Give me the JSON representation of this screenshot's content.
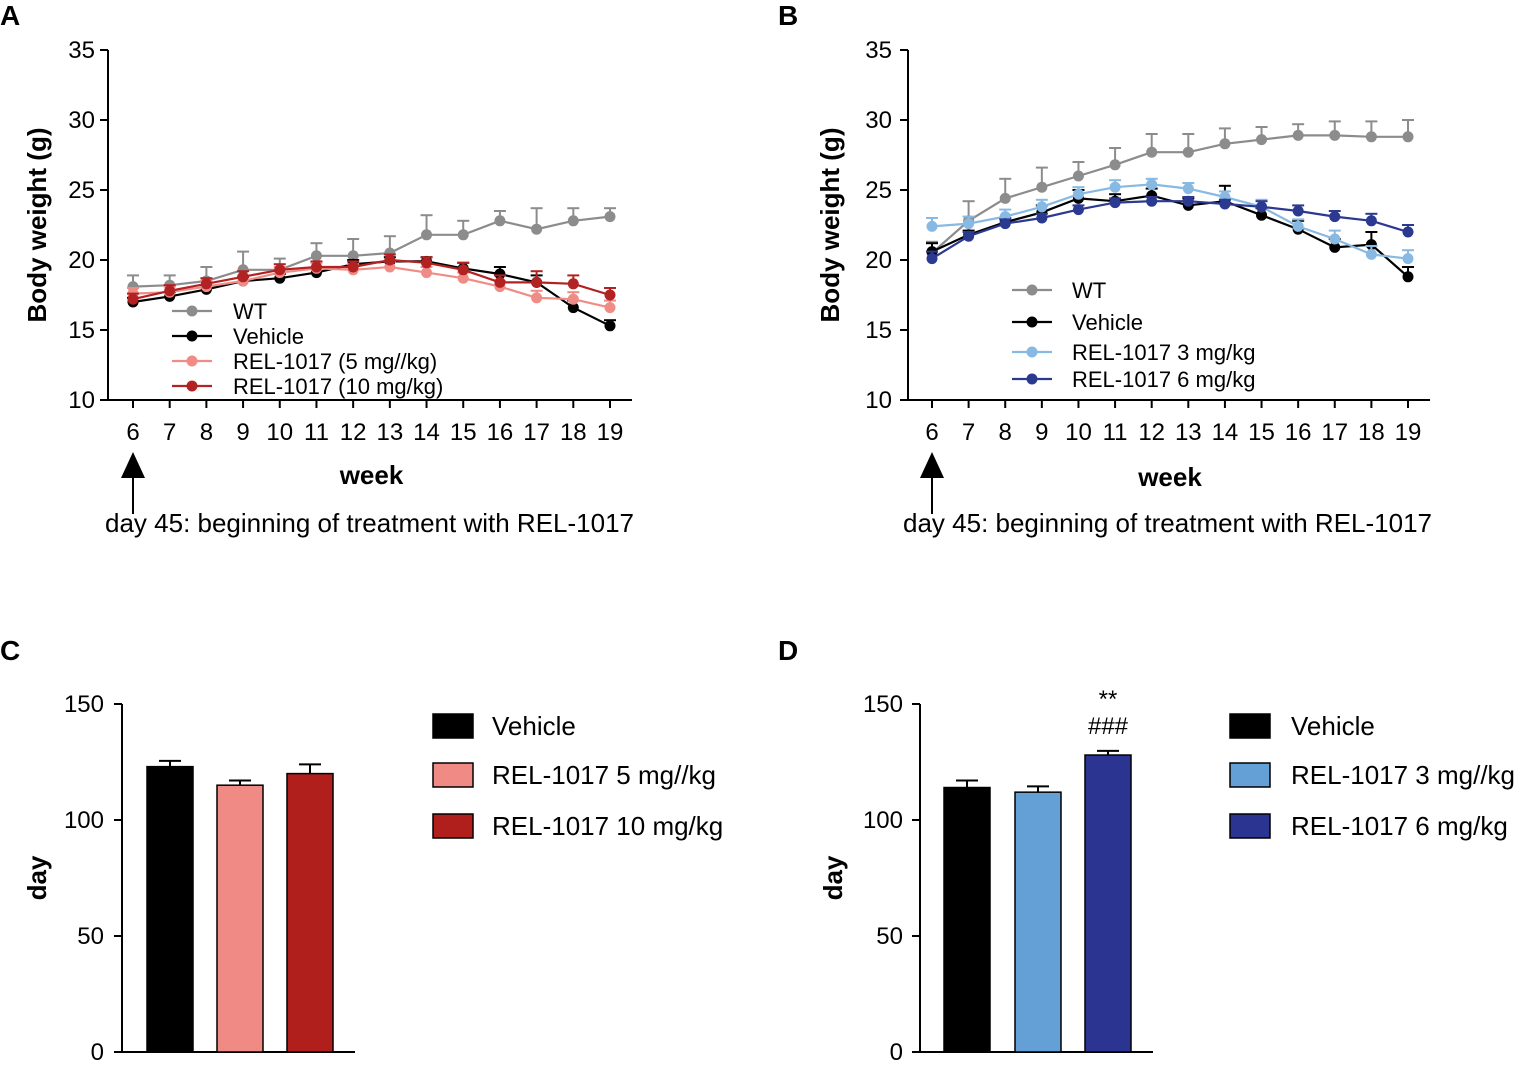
{
  "panel_labels": [
    "A",
    "B",
    "C",
    "D"
  ],
  "chart_data": [
    {
      "panel": "A",
      "type": "line",
      "title": "",
      "xlabel": "week",
      "ylabel": "Body weight (g)",
      "x": [
        6,
        7,
        8,
        9,
        10,
        11,
        12,
        13,
        14,
        15,
        16,
        17,
        18,
        19
      ],
      "xticks": [
        "6",
        "7",
        "8",
        "9",
        "10",
        "11",
        "12",
        "13",
        "14",
        "15",
        "16",
        "17",
        "18",
        "19"
      ],
      "ylim": [
        10,
        35
      ],
      "yticks": [
        "10",
        "15",
        "20",
        "25",
        "30",
        "35"
      ],
      "legend_position": "lower-left",
      "series": [
        {
          "name": "WT",
          "color": "#8c8c8c",
          "values": [
            18.1,
            18.2,
            18.5,
            19.3,
            19.3,
            20.3,
            20.3,
            20.5,
            21.8,
            21.8,
            22.8,
            22.2,
            22.8,
            23.1
          ],
          "errors": [
            0.8,
            0.7,
            1.0,
            1.3,
            0.8,
            0.9,
            1.2,
            1.2,
            1.4,
            1.0,
            0.7,
            1.5,
            0.9,
            0.6
          ]
        },
        {
          "name": "Vehicle",
          "color": "#000000",
          "values": [
            17.0,
            17.4,
            17.9,
            18.5,
            18.7,
            19.1,
            19.7,
            19.9,
            19.9,
            19.4,
            19.0,
            18.4,
            16.6,
            15.3
          ],
          "errors": [
            0.3,
            0.3,
            0.3,
            0.3,
            0.3,
            0.3,
            0.3,
            0.3,
            0.3,
            0.4,
            0.5,
            0.5,
            0.5,
            0.4
          ]
        },
        {
          "name": "REL-1017 (5 mg//kg)",
          "color": "#f08c86",
          "values": [
            17.6,
            17.7,
            18.1,
            18.5,
            19.1,
            19.4,
            19.3,
            19.5,
            19.1,
            18.7,
            18.1,
            17.3,
            17.2,
            16.6
          ],
          "errors": [
            0.4,
            0.4,
            0.4,
            0.4,
            0.4,
            0.4,
            0.4,
            0.4,
            0.4,
            0.4,
            0.4,
            0.5,
            0.5,
            0.5
          ]
        },
        {
          "name": "REL-1017 (10 mg/kg)",
          "color": "#b22222",
          "values": [
            17.2,
            17.8,
            18.3,
            18.8,
            19.3,
            19.5,
            19.5,
            20.0,
            19.8,
            19.3,
            18.4,
            18.4,
            18.3,
            17.5
          ],
          "errors": [
            0.4,
            0.4,
            0.4,
            0.4,
            0.4,
            0.4,
            0.4,
            0.4,
            0.4,
            0.5,
            0.5,
            0.8,
            0.6,
            0.5
          ]
        }
      ],
      "annotation": "day 45: beginning of treatment with REL-1017"
    },
    {
      "panel": "B",
      "type": "line",
      "title": "",
      "xlabel": "week",
      "ylabel": "Body weight (g)",
      "x": [
        6,
        7,
        8,
        9,
        10,
        11,
        12,
        13,
        14,
        15,
        16,
        17,
        18,
        19
      ],
      "xticks": [
        "6",
        "7",
        "8",
        "9",
        "10",
        "11",
        "12",
        "13",
        "14",
        "15",
        "16",
        "17",
        "18",
        "19"
      ],
      "ylim": [
        10,
        35
      ],
      "yticks": [
        "10",
        "15",
        "20",
        "25",
        "30",
        "35"
      ],
      "legend_position": "lower-left",
      "series": [
        {
          "name": "WT",
          "color": "#8c8c8c",
          "values": [
            20.5,
            22.8,
            24.4,
            25.2,
            26.0,
            26.8,
            27.7,
            27.7,
            28.3,
            28.6,
            28.9,
            28.9,
            28.8,
            28.8
          ],
          "errors": [
            0.8,
            1.4,
            1.4,
            1.4,
            1.0,
            1.2,
            1.3,
            1.3,
            1.1,
            0.9,
            0.8,
            1.0,
            1.1,
            1.2
          ]
        },
        {
          "name": "Vehicle",
          "color": "#000000",
          "values": [
            20.6,
            21.8,
            22.7,
            23.4,
            24.4,
            24.2,
            24.6,
            23.9,
            24.2,
            23.2,
            22.2,
            20.9,
            21.1,
            18.8
          ],
          "errors": [
            0.6,
            0.3,
            0.3,
            0.5,
            0.6,
            0.5,
            0.5,
            0.5,
            1.1,
            0.5,
            0.6,
            0.6,
            0.9,
            0.7
          ]
        },
        {
          "name": "REL-1017 3 mg/kg",
          "color": "#87b9e3",
          "values": [
            22.4,
            22.6,
            23.1,
            23.8,
            24.7,
            25.2,
            25.4,
            25.1,
            24.5,
            23.8,
            22.4,
            21.5,
            20.4,
            20.1
          ],
          "errors": [
            0.6,
            0.5,
            0.5,
            0.5,
            0.5,
            0.5,
            0.4,
            0.4,
            0.4,
            0.5,
            0.5,
            0.6,
            0.6,
            0.6
          ]
        },
        {
          "name": "REL-1017 6 mg/kg",
          "color": "#2b3991",
          "values": [
            20.1,
            21.7,
            22.6,
            23.0,
            23.6,
            24.1,
            24.2,
            24.2,
            24.0,
            23.8,
            23.5,
            23.1,
            22.8,
            22.0
          ],
          "errors": [
            0.5,
            0.3,
            0.3,
            0.3,
            0.3,
            0.3,
            0.3,
            0.3,
            0.3,
            0.4,
            0.4,
            0.4,
            0.5,
            0.5
          ]
        }
      ],
      "annotation": "day 45: beginning of treatment with REL-1017"
    },
    {
      "panel": "C",
      "type": "bar",
      "title": "",
      "xlabel": "",
      "ylabel": "day",
      "categories": [
        "Vehicle",
        "REL-1017 5 mg//kg",
        "REL-1017 10 mg/kg"
      ],
      "values": [
        123,
        115,
        120
      ],
      "errors": [
        2.5,
        2.0,
        4.0
      ],
      "colors": [
        "#000000",
        "#f08a85",
        "#b01f1b"
      ],
      "ylim": [
        0,
        150
      ],
      "yticks": [
        "0",
        "50",
        "100",
        "150"
      ],
      "legend_position": "right"
    },
    {
      "panel": "D",
      "type": "bar",
      "title": "",
      "xlabel": "",
      "ylabel": "day",
      "categories": [
        "Vehicle",
        "REL-1017 3 mg//kg",
        "REL-1017 6 mg/kg"
      ],
      "values": [
        114,
        112,
        128
      ],
      "errors": [
        3.0,
        2.5,
        1.8
      ],
      "colors": [
        "#000000",
        "#64a0d6",
        "#2b3591"
      ],
      "significance": [
        "",
        "",
        "**\n###"
      ],
      "ylim": [
        0,
        150
      ],
      "yticks": [
        "0",
        "50",
        "100",
        "150"
      ],
      "legend_position": "right"
    }
  ]
}
